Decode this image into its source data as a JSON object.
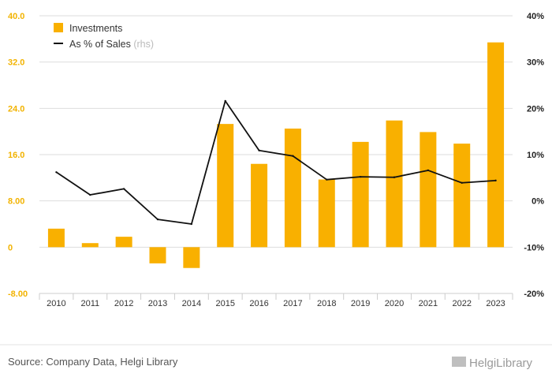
{
  "chart_data": {
    "type": "bar",
    "categories": [
      "2010",
      "2011",
      "2012",
      "2013",
      "2014",
      "2015",
      "2016",
      "2017",
      "2018",
      "2019",
      "2020",
      "2021",
      "2022",
      "2023"
    ],
    "series": [
      {
        "name": "Investments",
        "type": "bar",
        "axis": "left",
        "values": [
          3.2,
          0.7,
          1.8,
          -2.8,
          -3.6,
          21.3,
          14.4,
          20.5,
          11.7,
          18.2,
          21.9,
          19.9,
          17.9,
          35.4
        ]
      },
      {
        "name": "As % of Sales",
        "name_suffix": "(rhs)",
        "type": "line",
        "axis": "right",
        "values": [
          6.2,
          1.3,
          2.6,
          -4.0,
          -5.0,
          21.6,
          10.9,
          9.7,
          4.6,
          5.2,
          5.1,
          6.6,
          3.9,
          4.4
        ]
      }
    ],
    "left_axis": {
      "ylim": [
        -8,
        40
      ],
      "ticks": [
        "-8.00",
        "0",
        "8.00",
        "16.0",
        "24.0",
        "32.0",
        "40.0"
      ],
      "tick_values": [
        -8,
        0,
        8,
        16,
        24,
        32,
        40
      ]
    },
    "right_axis": {
      "ylim": [
        -20,
        40
      ],
      "ticks": [
        "-20%",
        "-10%",
        "0%",
        "10%",
        "20%",
        "30%",
        "40%"
      ],
      "tick_values": [
        -20,
        -10,
        0,
        10,
        20,
        30,
        40
      ]
    },
    "grid": true,
    "legend_position": "top-left",
    "colors": {
      "bar": "#f9b000",
      "line": "#111111",
      "grid": "#dddddd",
      "left_ticks": "#f2b300"
    }
  },
  "footer": {
    "source": "Source: Company Data, Helgi Library",
    "brand": "HelgiLibrary"
  }
}
